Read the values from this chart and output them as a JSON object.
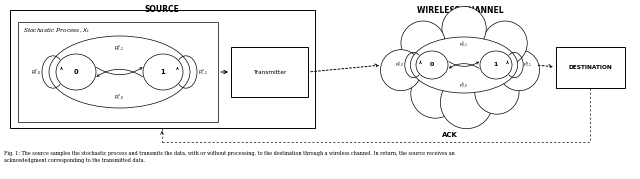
{
  "title": "SOURCE",
  "wireless_channel_label": "WIRELESS CHANNEL",
  "ack_label": "ACK",
  "destination_label": "DESTINATION",
  "transmitter_label": "Transmitter",
  "stochastic_label": "Stochastic Process, $X_t$",
  "caption_line1": "Fig. 1: The source samples the stochastic process and transmits the data, with or without processing, to the destination through a wireless channel. In return, the source receives an",
  "caption_line2": "acknowledgment corresponding to the transmitted data.",
  "bg_color": "#ffffff",
  "lw": 0.7,
  "lw_thin": 0.5
}
